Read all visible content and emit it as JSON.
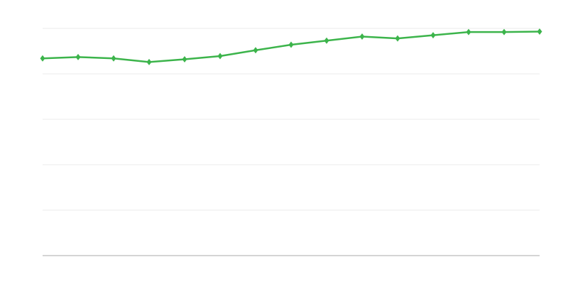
{
  "chart_data": {
    "type": "line",
    "title": "",
    "xlabel": "",
    "ylabel": "",
    "x": [
      1,
      2,
      3,
      4,
      5,
      6,
      7,
      8,
      9,
      10,
      11,
      12,
      13,
      14,
      15
    ],
    "series": [
      {
        "values": [
          4.34,
          4.37,
          4.34,
          4.26,
          4.32,
          4.39,
          4.52,
          4.64,
          4.73,
          4.82,
          4.78,
          4.85,
          4.92,
          4.92,
          4.93
        ],
        "color": "#3cb44b"
      }
    ],
    "ylim": [
      0,
      5
    ],
    "yticks": [
      0,
      1,
      2,
      3,
      4,
      5
    ],
    "grid": true,
    "tick_labels_shown": false,
    "marker": "diamond",
    "gridline_color": "#ebebeb",
    "baseline_color": "#aaaaaa"
  }
}
